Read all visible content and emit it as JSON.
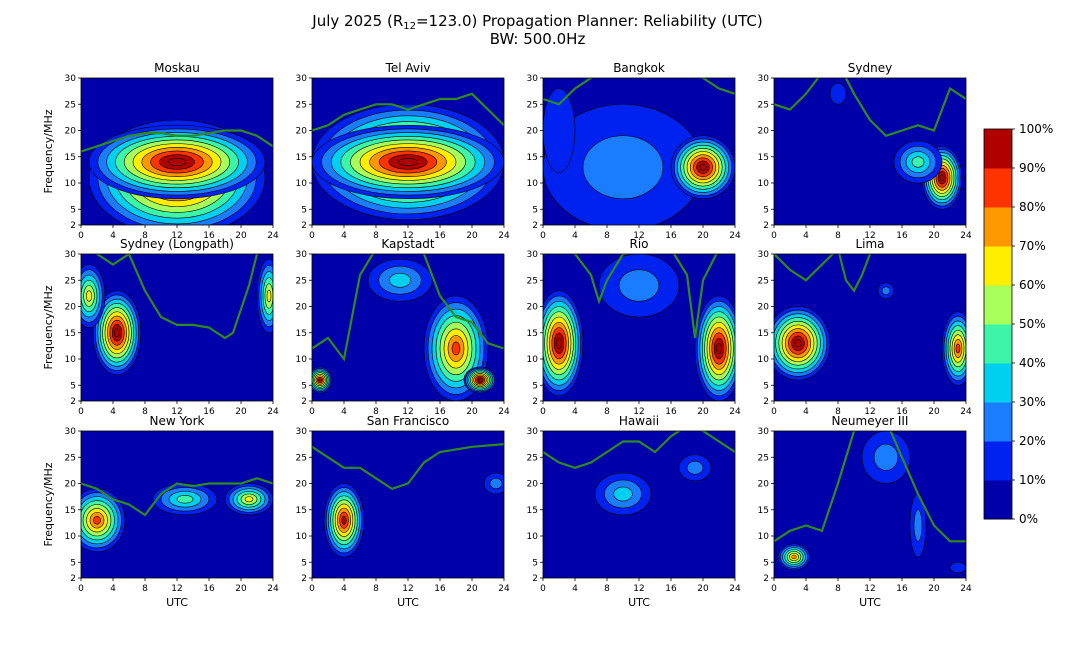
{
  "header": {
    "title_pre": "July 2025 (R",
    "title_sub": "12",
    "title_post": "=123.0) Propagation Planner: Reliability (UTC)",
    "bandwidth": "BW: 500.0Hz"
  },
  "axes": {
    "ylabel": "Frequency/MHz",
    "xlabel": "UTC",
    "xticks": [
      0,
      4,
      8,
      12,
      16,
      20,
      24
    ],
    "yticks": [
      2,
      5,
      10,
      15,
      20,
      25,
      30
    ]
  },
  "colorbar": {
    "labels": [
      "100%",
      "90%",
      "80%",
      "70%",
      "60%",
      "50%",
      "40%",
      "30%",
      "20%",
      "10%",
      "0%"
    ],
    "colors": [
      "#0000aa",
      "#0022f0",
      "#1a7cff",
      "#00d0f0",
      "#3cf5a8",
      "#a8ff5a",
      "#ffee00",
      "#ff9800",
      "#ff3300",
      "#b00000"
    ]
  },
  "curve_color": "#2e8b1e",
  "chart_data": [
    {
      "type": "heatmap",
      "title": "Moskau",
      "xlim": [
        0,
        24
      ],
      "ylim": [
        2,
        30
      ],
      "blobs": [
        [
          12,
          11,
          11,
          11,
          10
        ],
        [
          12,
          14,
          11,
          7,
          10
        ]
      ],
      "muf": [
        [
          0,
          16
        ],
        [
          2,
          17
        ],
        [
          4,
          18
        ],
        [
          6,
          19
        ],
        [
          8,
          19.5
        ],
        [
          10,
          19.5
        ],
        [
          12,
          19
        ],
        [
          14,
          19
        ],
        [
          16,
          19.5
        ],
        [
          18,
          20
        ],
        [
          20,
          20
        ],
        [
          22,
          19
        ],
        [
          24,
          17
        ]
      ]
    },
    {
      "type": "heatmap",
      "title": "Tel Aviv",
      "xlim": [
        0,
        24
      ],
      "ylim": [
        2,
        30
      ],
      "blobs": [
        [
          12,
          14,
          12,
          11,
          10
        ],
        [
          12,
          14,
          12,
          7,
          10
        ]
      ],
      "muf": [
        [
          0,
          20
        ],
        [
          2,
          21
        ],
        [
          4,
          23
        ],
        [
          6,
          24
        ],
        [
          8,
          25
        ],
        [
          10,
          25
        ],
        [
          12,
          24
        ],
        [
          14,
          25
        ],
        [
          16,
          26
        ],
        [
          18,
          26
        ],
        [
          20,
          27
        ],
        [
          22,
          24
        ],
        [
          24,
          21
        ]
      ]
    },
    {
      "type": "heatmap",
      "title": "Bangkok",
      "xlim": [
        0,
        24
      ],
      "ylim": [
        2,
        30
      ],
      "blobs": [
        [
          10,
          13,
          10,
          12,
          2
        ],
        [
          20,
          13,
          4,
          6,
          10
        ],
        [
          2,
          20,
          2,
          8,
          1
        ]
      ],
      "muf": [
        [
          0,
          26
        ],
        [
          2,
          25
        ],
        [
          4,
          28
        ],
        [
          6,
          30
        ],
        [
          8,
          32
        ],
        [
          12,
          33
        ],
        [
          16,
          32
        ],
        [
          20,
          30
        ],
        [
          22,
          28
        ],
        [
          24,
          27
        ]
      ]
    },
    {
      "type": "heatmap",
      "title": "Sydney",
      "xlim": [
        0,
        24
      ],
      "ylim": [
        2,
        30
      ],
      "blobs": [
        [
          21,
          11,
          2.5,
          6,
          10
        ],
        [
          18,
          14,
          3,
          4,
          4
        ],
        [
          8,
          27,
          1,
          2,
          1
        ]
      ],
      "muf": [
        [
          0,
          25
        ],
        [
          2,
          24
        ],
        [
          4,
          27
        ],
        [
          6,
          31
        ],
        [
          8,
          33
        ],
        [
          10,
          27
        ],
        [
          12,
          22
        ],
        [
          14,
          19
        ],
        [
          16,
          20
        ],
        [
          18,
          21
        ],
        [
          20,
          20
        ],
        [
          22,
          28
        ],
        [
          24,
          26
        ]
      ]
    },
    {
      "type": "heatmap",
      "title": "Sydney (Longpath)",
      "xlim": [
        0,
        24
      ],
      "ylim": [
        2,
        30
      ],
      "blobs": [
        [
          4.5,
          15,
          3,
          8,
          10
        ],
        [
          1,
          22,
          2,
          6,
          6
        ],
        [
          23.5,
          22,
          1.5,
          7,
          6
        ]
      ],
      "muf": [
        [
          2,
          30
        ],
        [
          4,
          28
        ],
        [
          6,
          30
        ],
        [
          8,
          23
        ],
        [
          10,
          18
        ],
        [
          12,
          16.5
        ],
        [
          14,
          16.5
        ],
        [
          16,
          16
        ],
        [
          18,
          14
        ],
        [
          19,
          15
        ],
        [
          21,
          24
        ],
        [
          22,
          30
        ]
      ]
    },
    {
      "type": "heatmap",
      "title": "Kapstadt",
      "xlim": [
        0,
        24
      ],
      "ylim": [
        2,
        30
      ],
      "blobs": [
        [
          1,
          6,
          1.5,
          2.5,
          9
        ],
        [
          18,
          12,
          4,
          10,
          8
        ],
        [
          21,
          6,
          2,
          2.5,
          10
        ],
        [
          11,
          25,
          4,
          4,
          3
        ]
      ],
      "muf": [
        [
          0,
          12
        ],
        [
          2,
          14
        ],
        [
          4,
          10
        ],
        [
          6,
          26
        ],
        [
          8,
          31
        ],
        [
          12,
          33
        ],
        [
          14,
          30
        ],
        [
          16,
          22
        ],
        [
          18,
          18
        ],
        [
          20,
          17
        ],
        [
          22,
          13
        ],
        [
          24,
          12
        ]
      ]
    },
    {
      "type": "heatmap",
      "title": "Rio",
      "xlim": [
        0,
        24
      ],
      "ylim": [
        2,
        30
      ],
      "blobs": [
        [
          2,
          13,
          3,
          10,
          10
        ],
        [
          22,
          12,
          3,
          10,
          10
        ],
        [
          12,
          24,
          5,
          6,
          2
        ]
      ],
      "muf": [
        [
          0,
          30
        ],
        [
          2,
          31
        ],
        [
          4,
          30
        ],
        [
          6,
          26
        ],
        [
          7,
          21
        ],
        [
          8,
          25
        ],
        [
          10,
          30
        ],
        [
          16,
          31
        ],
        [
          18,
          26
        ],
        [
          19,
          14
        ],
        [
          20,
          25
        ],
        [
          22,
          31
        ],
        [
          24,
          31
        ]
      ]
    },
    {
      "type": "heatmap",
      "title": "Lima",
      "xlim": [
        0,
        24
      ],
      "ylim": [
        2,
        30
      ],
      "blobs": [
        [
          3,
          13,
          4,
          7,
          10
        ],
        [
          23,
          12,
          2,
          7,
          8
        ],
        [
          14,
          23,
          1,
          1.5,
          2
        ]
      ],
      "muf": [
        [
          0,
          30
        ],
        [
          2,
          27
        ],
        [
          4,
          25
        ],
        [
          6,
          28
        ],
        [
          8,
          31
        ],
        [
          9,
          25
        ],
        [
          10,
          23
        ],
        [
          11,
          26
        ],
        [
          12,
          30
        ]
      ]
    },
    {
      "type": "heatmap",
      "title": "New York",
      "xlim": [
        0,
        24
      ],
      "ylim": [
        2,
        30
      ],
      "blobs": [
        [
          2,
          13,
          3.5,
          6,
          8
        ],
        [
          21,
          17,
          3,
          3,
          6
        ],
        [
          13,
          17,
          4,
          3,
          4
        ]
      ],
      "muf": [
        [
          0,
          20
        ],
        [
          2,
          19
        ],
        [
          4,
          17
        ],
        [
          6,
          16
        ],
        [
          8,
          14
        ],
        [
          10,
          18
        ],
        [
          12,
          20
        ],
        [
          14,
          19.5
        ],
        [
          16,
          20
        ],
        [
          18,
          20
        ],
        [
          20,
          20
        ],
        [
          22,
          21
        ],
        [
          24,
          20
        ]
      ]
    },
    {
      "type": "heatmap",
      "title": "San Francisco",
      "xlim": [
        0,
        24
      ],
      "ylim": [
        2,
        30
      ],
      "blobs": [
        [
          4,
          13,
          2.5,
          7,
          9
        ],
        [
          23,
          20,
          1.5,
          2,
          2
        ]
      ],
      "muf": [
        [
          0,
          27
        ],
        [
          2,
          25
        ],
        [
          4,
          23
        ],
        [
          6,
          23
        ],
        [
          8,
          21
        ],
        [
          10,
          19
        ],
        [
          12,
          20
        ],
        [
          14,
          24
        ],
        [
          16,
          26
        ],
        [
          20,
          27
        ],
        [
          24,
          27.5
        ]
      ]
    },
    {
      "type": "heatmap",
      "title": "Hawaii",
      "xlim": [
        0,
        24
      ],
      "ylim": [
        2,
        30
      ],
      "blobs": [
        [
          10,
          18,
          3.5,
          4,
          3
        ],
        [
          19,
          23,
          2,
          2.5,
          2
        ]
      ],
      "muf": [
        [
          0,
          26
        ],
        [
          2,
          24
        ],
        [
          4,
          23
        ],
        [
          6,
          24
        ],
        [
          8,
          26
        ],
        [
          10,
          28
        ],
        [
          12,
          28
        ],
        [
          14,
          26
        ],
        [
          16,
          29
        ],
        [
          18,
          31
        ],
        [
          20,
          30
        ],
        [
          24,
          26
        ]
      ]
    },
    {
      "type": "heatmap",
      "title": "Neumeyer III",
      "xlim": [
        0,
        24
      ],
      "ylim": [
        2,
        30
      ],
      "blobs": [
        [
          2.5,
          6,
          2,
          2.5,
          7
        ],
        [
          14,
          25,
          3,
          5,
          2
        ],
        [
          18,
          12,
          1,
          6,
          2
        ],
        [
          23,
          4,
          1,
          1,
          1
        ]
      ],
      "muf": [
        [
          0,
          9
        ],
        [
          2,
          11
        ],
        [
          4,
          12
        ],
        [
          6,
          11
        ],
        [
          8,
          20
        ],
        [
          10,
          30
        ],
        [
          14,
          32
        ],
        [
          16,
          25
        ],
        [
          18,
          18
        ],
        [
          20,
          12
        ],
        [
          22,
          9
        ],
        [
          24,
          9
        ]
      ]
    }
  ]
}
